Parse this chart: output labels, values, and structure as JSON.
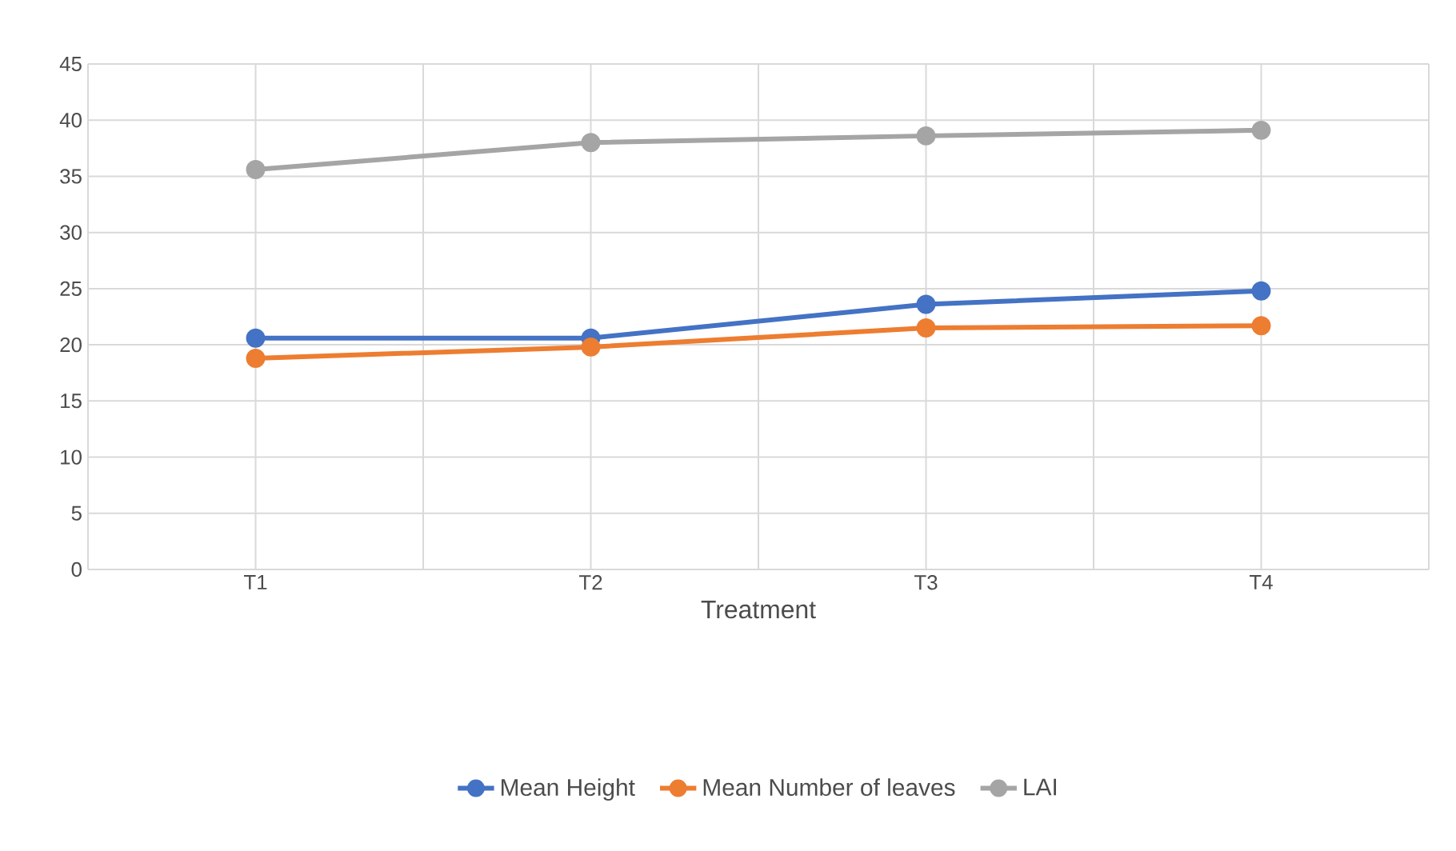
{
  "chart_data": {
    "type": "line",
    "xlabel": "Treatment",
    "categories": [
      "T1",
      "T2",
      "T3",
      "T4"
    ],
    "series": [
      {
        "name": "Mean Height",
        "color": "#4472c4",
        "values": [
          20.6,
          20.6,
          23.6,
          24.8
        ]
      },
      {
        "name": "Mean Number of leaves",
        "color": "#ed7d31",
        "values": [
          18.8,
          19.8,
          21.5,
          21.7
        ]
      },
      {
        "name": "LAI",
        "color": "#a5a5a5",
        "values": [
          35.6,
          38.0,
          38.6,
          39.1
        ]
      }
    ],
    "ylim": [
      0,
      45
    ],
    "yticks": [
      0,
      5,
      10,
      15,
      20,
      25,
      30,
      35,
      40,
      45
    ],
    "grid": true,
    "legend": "bottom",
    "marker": "circle",
    "line_style": "solid"
  }
}
